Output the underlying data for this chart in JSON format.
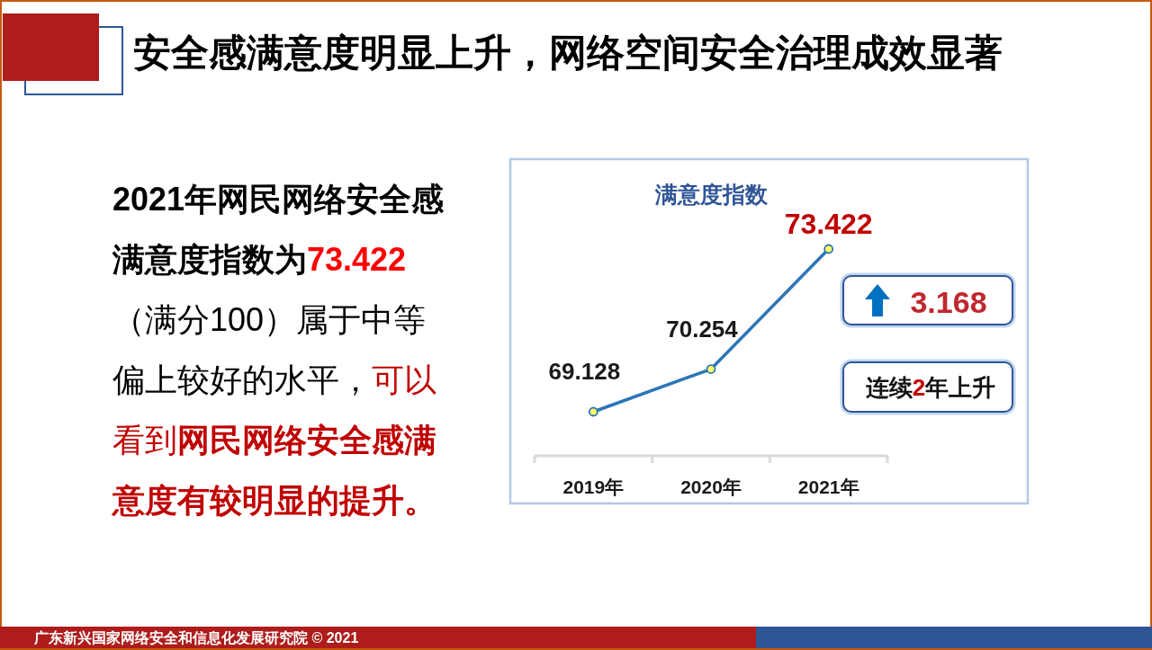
{
  "chart_data": {
    "type": "line",
    "title": "安全感满意度明显上升，网络空间安全治理成效显著",
    "subtitle": "满意度指数",
    "categories": [
      "2019年",
      "2020年",
      "2021年"
    ],
    "series": [
      {
        "color": "#2e75b6",
        "values": [
          69.128,
          70.254,
          73.422
        ]
      }
    ],
    "data_labels": true,
    "marker": "circle",
    "tick_labels": "x",
    "annotations": [
      "2021年网民网络安全感",
      "满意度指数为",
      "73.422",
      "（满分100）属于中等",
      "偏上较好的水平，",
      "可以",
      "看到",
      "网民网络安全感满",
      "意度有较明显的提升。",
      "3.168",
      "连续2年上升",
      "广东新兴国家网络安全和信息化发展研究院 © 2021"
    ]
  }
}
